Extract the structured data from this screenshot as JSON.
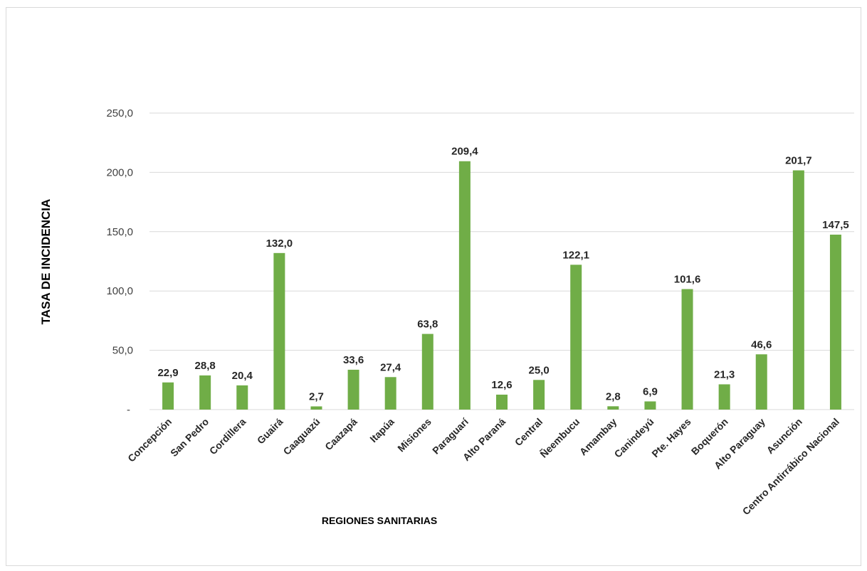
{
  "chart_data": {
    "type": "bar",
    "title": "",
    "xlabel": "REGIONES SANITARIAS",
    "ylabel": "TASA DE INCIDENCIA",
    "ylim": [
      0,
      250
    ],
    "yticks": [
      0,
      50,
      100,
      150,
      200,
      250
    ],
    "ytick_labels": [
      "-",
      "50,0",
      "100,0",
      "150,0",
      "200,0",
      "250,0"
    ],
    "grid": true,
    "legend": "none",
    "bar_color": "#70AD47",
    "categories": [
      "Concepción",
      "San Pedro",
      "Cordillera",
      "Guairá",
      "Caaguazú",
      "Caazapá",
      "Itapúa",
      "Misiones",
      "Paraguarí",
      "Alto Paraná",
      "Central",
      "Ñeembucu",
      "Amambay",
      "Canindeyú",
      "Pte. Hayes",
      "Boquerón",
      "Alto Paraguay",
      "Asunción",
      "Centro Antirrábico Nacional"
    ],
    "values": [
      22.9,
      28.8,
      20.4,
      132.0,
      2.7,
      33.6,
      27.4,
      63.8,
      209.4,
      12.6,
      25.0,
      122.1,
      2.8,
      6.9,
      101.6,
      21.3,
      46.6,
      201.7,
      147.5
    ],
    "data_labels": [
      "22,9",
      "28,8",
      "20,4",
      "132,0",
      "2,7",
      "33,6",
      "27,4",
      "63,8",
      "209,4",
      "12,6",
      "25,0",
      "122,1",
      "2,8",
      "6,9",
      "101,6",
      "21,3",
      "46,6",
      "201,7",
      "147,5"
    ]
  }
}
